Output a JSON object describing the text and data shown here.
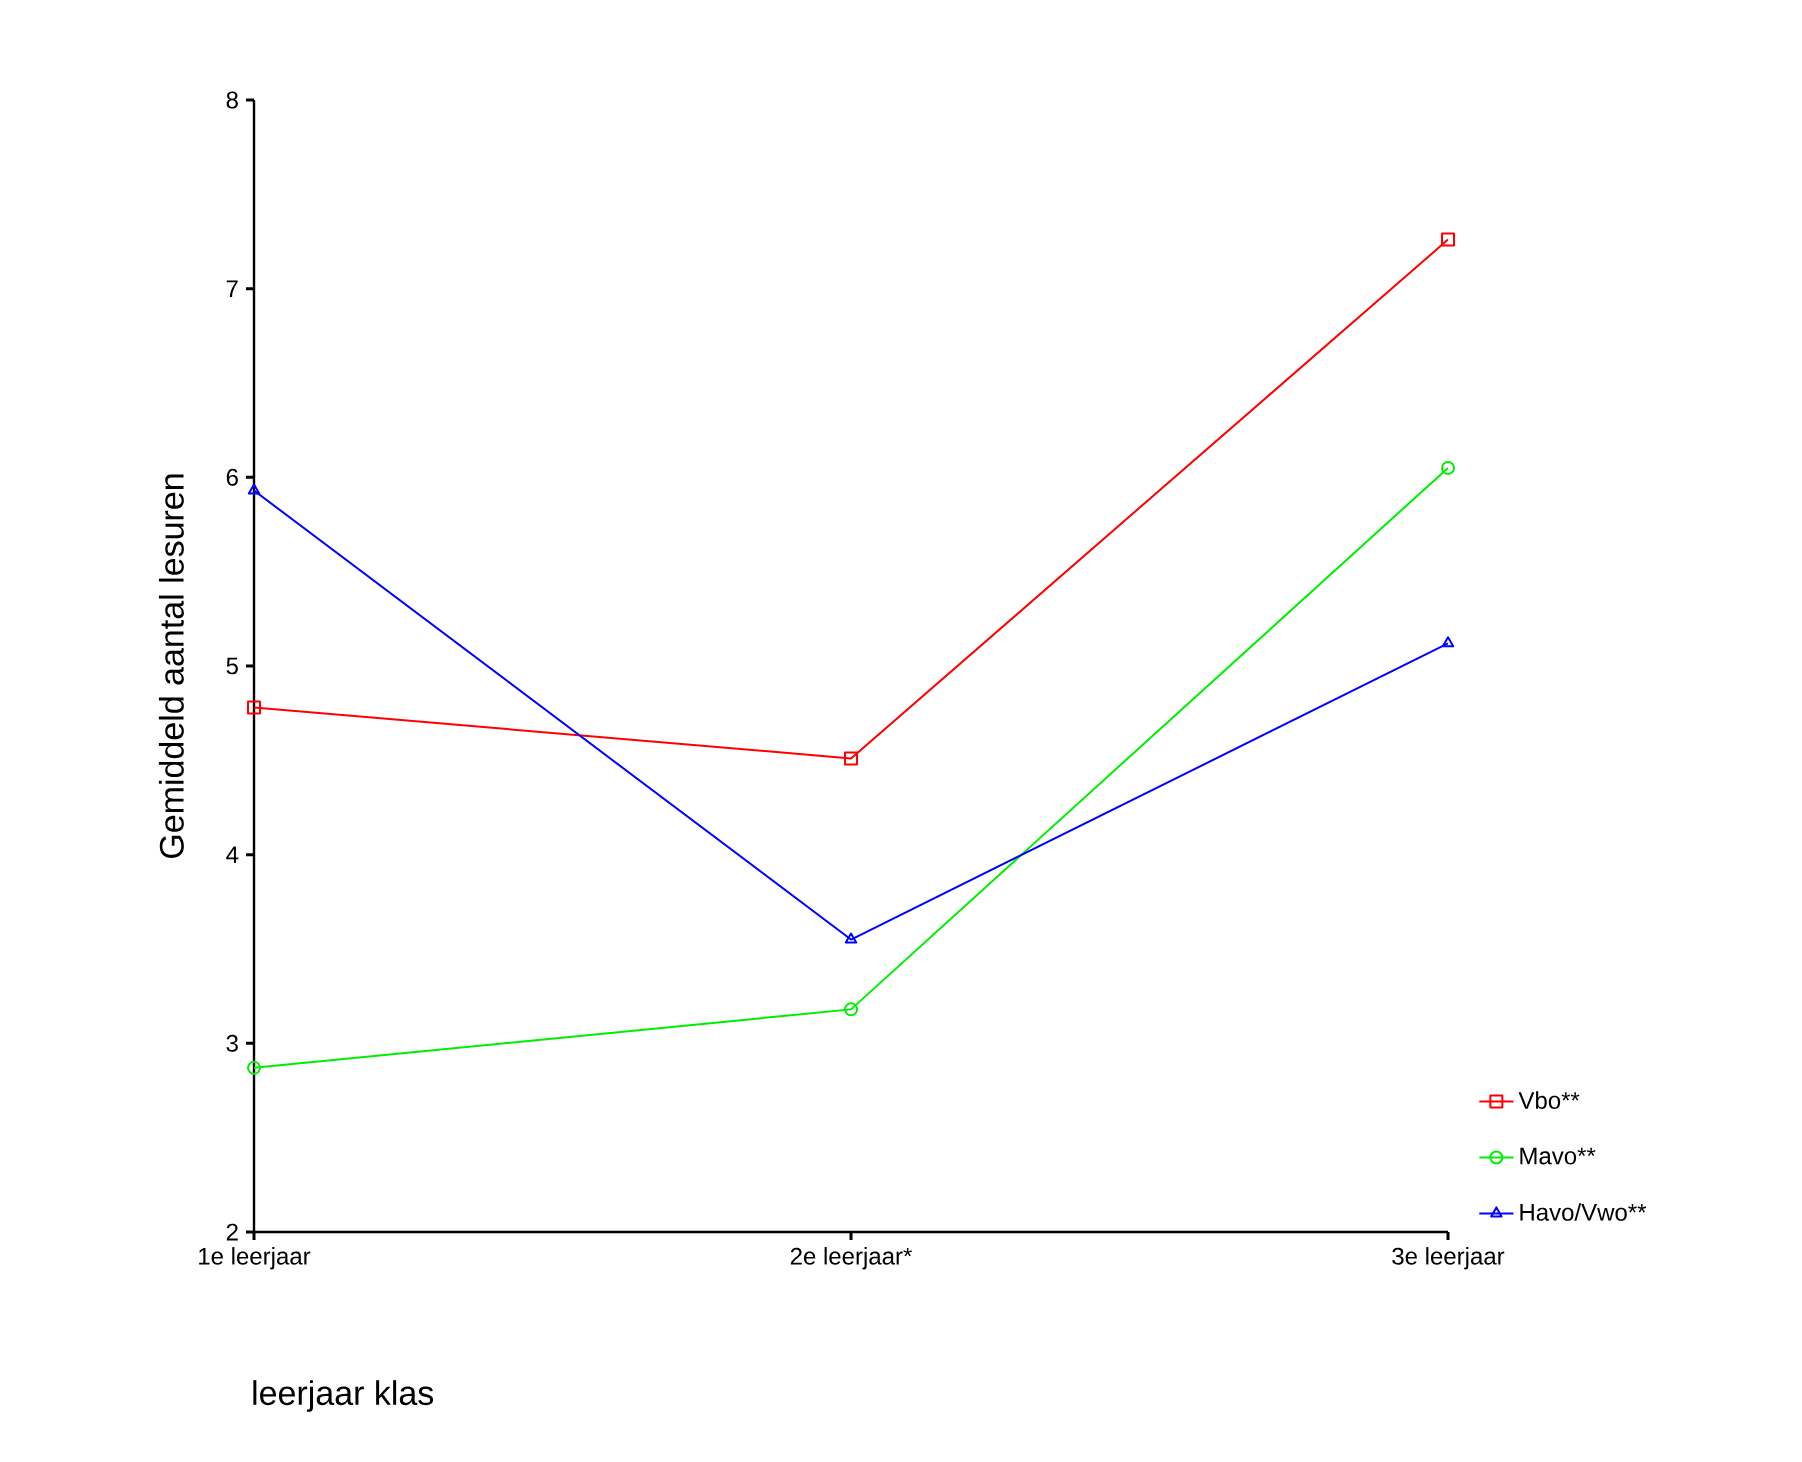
{
  "chart_data": {
    "type": "line",
    "xlabel": "leerjaar klas",
    "ylabel": "Gemiddeld aantal lesuren",
    "categories": [
      "1e leerjaar",
      "2e leerjaar*",
      "3e leerjaar"
    ],
    "series": [
      {
        "name": "Vbo**",
        "color": "#ff0000",
        "marker": "square",
        "values": [
          4.78,
          4.51,
          7.26
        ]
      },
      {
        "name": "Mavo**",
        "color": "#00ee00",
        "marker": "circle",
        "values": [
          2.87,
          3.18,
          6.05
        ]
      },
      {
        "name": "Havo/Vwo**",
        "color": "#0000ff",
        "marker": "triangle",
        "values": [
          5.93,
          3.55,
          5.12
        ]
      }
    ],
    "ylim": [
      2,
      8
    ],
    "yticks": [
      2,
      3,
      4,
      5,
      6,
      7,
      8
    ],
    "grid": false,
    "legend": "bottom right",
    "line_style": "solid"
  }
}
